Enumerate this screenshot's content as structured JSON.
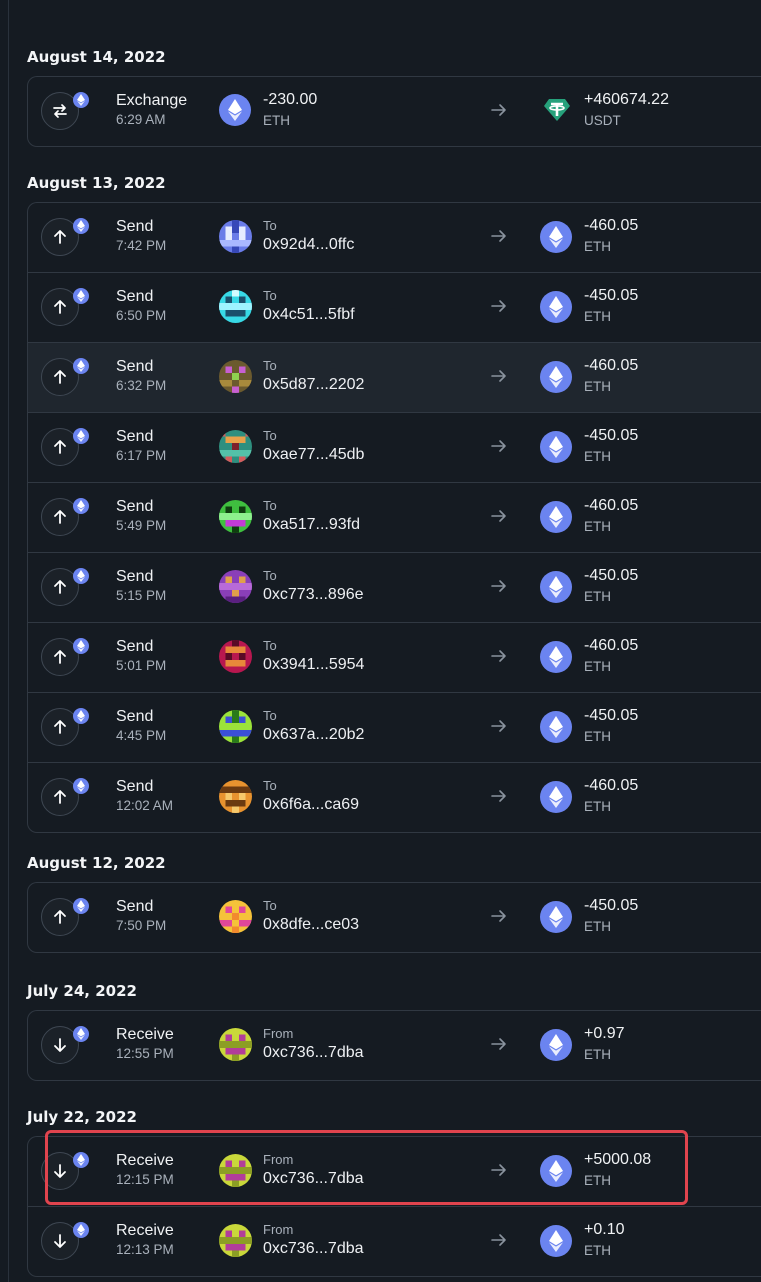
{
  "colors": {
    "background": "#151b22",
    "row_border": "#303842",
    "eth_blue": "#6b84f0",
    "usdt_green": "#26a17b",
    "highlight_red": "#e0444e"
  },
  "icons": {
    "send": "arrow-up-icon",
    "receive": "arrow-down-icon",
    "exchange": "swap-icon",
    "badge": "ethereum-icon",
    "direction": "arrow-right-icon"
  },
  "sections": [
    {
      "date": "August 14, 2022",
      "transactions": [
        {
          "type": "Exchange",
          "time": "6:29 AM",
          "from_amount": "-230.00",
          "from_symbol": "ETH",
          "to_amount": "+460674.22",
          "to_symbol": "USDT"
        }
      ]
    },
    {
      "date": "August 13, 2022",
      "transactions": [
        {
          "type": "Send",
          "time": "7:42 PM",
          "direction_label": "To",
          "address": "0x92d4...0ffc",
          "amount": "-460.05",
          "symbol": "ETH"
        },
        {
          "type": "Send",
          "time": "6:50 PM",
          "direction_label": "To",
          "address": "0x4c51...5fbf",
          "amount": "-450.05",
          "symbol": "ETH"
        },
        {
          "type": "Send",
          "time": "6:32 PM",
          "direction_label": "To",
          "address": "0x5d87...2202",
          "amount": "-460.05",
          "symbol": "ETH"
        },
        {
          "type": "Send",
          "time": "6:17 PM",
          "direction_label": "To",
          "address": "0xae77...45db",
          "amount": "-450.05",
          "symbol": "ETH"
        },
        {
          "type": "Send",
          "time": "5:49 PM",
          "direction_label": "To",
          "address": "0xa517...93fd",
          "amount": "-460.05",
          "symbol": "ETH"
        },
        {
          "type": "Send",
          "time": "5:15 PM",
          "direction_label": "To",
          "address": "0xc773...896e",
          "amount": "-450.05",
          "symbol": "ETH"
        },
        {
          "type": "Send",
          "time": "5:01 PM",
          "direction_label": "To",
          "address": "0x3941...5954",
          "amount": "-460.05",
          "symbol": "ETH"
        },
        {
          "type": "Send",
          "time": "4:45 PM",
          "direction_label": "To",
          "address": "0x637a...20b2",
          "amount": "-450.05",
          "symbol": "ETH"
        },
        {
          "type": "Send",
          "time": "12:02 AM",
          "direction_label": "To",
          "address": "0x6f6a...ca69",
          "amount": "-460.05",
          "symbol": "ETH"
        }
      ]
    },
    {
      "date": "August 12, 2022",
      "transactions": [
        {
          "type": "Send",
          "time": "7:50 PM",
          "direction_label": "To",
          "address": "0x8dfe...ce03",
          "amount": "-450.05",
          "symbol": "ETH"
        }
      ]
    },
    {
      "date": "July 24, 2022",
      "transactions": [
        {
          "type": "Receive",
          "time": "12:55 PM",
          "direction_label": "From",
          "address": "0xc736...7dba",
          "amount": "+0.97",
          "symbol": "ETH"
        }
      ]
    },
    {
      "date": "July 22, 2022",
      "transactions": [
        {
          "type": "Receive",
          "time": "12:15 PM",
          "direction_label": "From",
          "address": "0xc736...7dba",
          "amount": "+5000.08",
          "symbol": "ETH"
        },
        {
          "type": "Receive",
          "time": "12:13 PM",
          "direction_label": "From",
          "address": "0xc736...7dba",
          "amount": "+0.10",
          "symbol": "ETH"
        }
      ]
    }
  ]
}
